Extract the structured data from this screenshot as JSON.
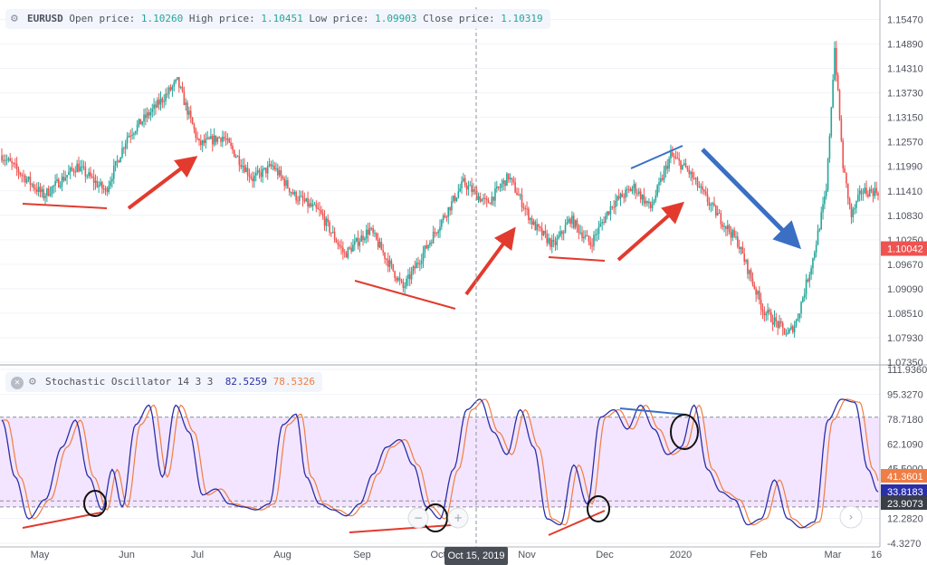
{
  "main_legend": {
    "symbol": "EURUSD",
    "open_label": "Open price:",
    "open": "1.10260",
    "high_label": "High price:",
    "high": "1.10451",
    "low_label": "Low price:",
    "low": "1.09903",
    "close_label": "Close price:",
    "close": "1.10319"
  },
  "osc_legend": {
    "name": "Stochastic Oscillator 14 3 3",
    "k": "82.5259",
    "d": "78.5326"
  },
  "crosshair_label": "Oct 15, 2019",
  "colors": {
    "up": "#26a69a",
    "down": "#ef5350",
    "k_line": "#2a2fa8",
    "d_line": "#f07d44",
    "band": "#f3e5ff",
    "arrow_red": "#e23b2e",
    "arrow_blue": "#3a6fc4",
    "divergence_red": "#e23b2e",
    "divergence_blue": "#3a6fc4"
  },
  "chart_data": [
    {
      "type": "candlestick",
      "symbol": "EURUSD",
      "y_ticks": [
        "1.15470",
        "1.14890",
        "1.14310",
        "1.13730",
        "1.13150",
        "1.12570",
        "1.11990",
        "1.11410",
        "1.10830",
        "1.10250",
        "1.09670",
        "1.09090",
        "1.08510",
        "1.07930",
        "1.07350"
      ],
      "ylim": [
        1.0735,
        1.1576
      ],
      "last_price": "1.10042",
      "x_ticks": [
        "May",
        "Jun",
        "Jul",
        "Aug",
        "Sep",
        "Oct",
        "Nov",
        "Dec",
        "2020",
        "Feb",
        "Mar",
        "16"
      ],
      "segments": [
        {
          "from": 0,
          "to": 1.1225
        },
        {
          "from": 25,
          "to": 1.113
        },
        {
          "from": 45,
          "to": 1.12
        },
        {
          "from": 62,
          "to": 1.114
        },
        {
          "from": 75,
          "to": 1.127
        },
        {
          "from": 92,
          "to": 1.134
        },
        {
          "from": 105,
          "to": 1.14
        },
        {
          "from": 118,
          "to": 1.125
        },
        {
          "from": 132,
          "to": 1.127
        },
        {
          "from": 150,
          "to": 1.117
        },
        {
          "from": 162,
          "to": 1.12
        },
        {
          "from": 175,
          "to": 1.113
        },
        {
          "from": 190,
          "to": 1.109
        },
        {
          "from": 205,
          "to": 1.099
        },
        {
          "from": 220,
          "to": 1.105
        },
        {
          "from": 240,
          "to": 1.091
        },
        {
          "from": 260,
          "to": 1.105
        },
        {
          "from": 276,
          "to": 1.116
        },
        {
          "from": 290,
          "to": 1.111
        },
        {
          "from": 303,
          "to": 1.1175
        },
        {
          "from": 318,
          "to": 1.106
        },
        {
          "from": 330,
          "to": 1.101
        },
        {
          "from": 340,
          "to": 1.1075
        },
        {
          "from": 352,
          "to": 1.1015
        },
        {
          "from": 365,
          "to": 1.111
        },
        {
          "from": 378,
          "to": 1.115
        },
        {
          "from": 388,
          "to": 1.11
        },
        {
          "from": 400,
          "to": 1.1225
        },
        {
          "from": 410,
          "to": 1.119
        },
        {
          "from": 425,
          "to": 1.11
        },
        {
          "from": 440,
          "to": 1.102
        },
        {
          "from": 455,
          "to": 1.086
        },
        {
          "from": 470,
          "to": 1.08
        },
        {
          "from": 475,
          "to": 1.083
        },
        {
          "from": 485,
          "to": 1.098
        },
        {
          "from": 493,
          "to": 1.114
        },
        {
          "from": 498,
          "to": 1.148
        },
        {
          "from": 503,
          "to": 1.12
        },
        {
          "from": 508,
          "to": 1.108
        },
        {
          "from": 514,
          "to": 1.114
        }
      ]
    },
    {
      "type": "line",
      "name": "Stochastic Oscillator 14 3 3",
      "y_ticks": [
        "111.9360",
        "95.3270",
        "78.7180",
        "62.1090",
        "45.5000",
        "28.8910",
        "12.2820",
        "-4.3270"
      ],
      "ylim": [
        -4.327,
        111.936
      ],
      "band": [
        20,
        80
      ],
      "last_values": [
        "41.3601",
        "33.8183",
        "23.9073"
      ],
      "k_anchors": [
        {
          "x": 0,
          "y": 78
        },
        {
          "x": 8,
          "y": 40
        },
        {
          "x": 16,
          "y": 12
        },
        {
          "x": 26,
          "y": 25
        },
        {
          "x": 36,
          "y": 60
        },
        {
          "x": 44,
          "y": 78
        },
        {
          "x": 52,
          "y": 40
        },
        {
          "x": 60,
          "y": 18
        },
        {
          "x": 66,
          "y": 45
        },
        {
          "x": 72,
          "y": 20
        },
        {
          "x": 80,
          "y": 75
        },
        {
          "x": 88,
          "y": 88
        },
        {
          "x": 96,
          "y": 40
        },
        {
          "x": 104,
          "y": 88
        },
        {
          "x": 112,
          "y": 70
        },
        {
          "x": 120,
          "y": 28
        },
        {
          "x": 128,
          "y": 32
        },
        {
          "x": 136,
          "y": 22
        },
        {
          "x": 144,
          "y": 20
        },
        {
          "x": 152,
          "y": 18
        },
        {
          "x": 160,
          "y": 22
        },
        {
          "x": 168,
          "y": 75
        },
        {
          "x": 176,
          "y": 82
        },
        {
          "x": 182,
          "y": 40
        },
        {
          "x": 190,
          "y": 22
        },
        {
          "x": 198,
          "y": 18
        },
        {
          "x": 206,
          "y": 14
        },
        {
          "x": 214,
          "y": 22
        },
        {
          "x": 222,
          "y": 42
        },
        {
          "x": 230,
          "y": 60
        },
        {
          "x": 238,
          "y": 65
        },
        {
          "x": 246,
          "y": 48
        },
        {
          "x": 254,
          "y": 20
        },
        {
          "x": 262,
          "y": 12
        },
        {
          "x": 270,
          "y": 45
        },
        {
          "x": 278,
          "y": 85
        },
        {
          "x": 286,
          "y": 92
        },
        {
          "x": 294,
          "y": 70
        },
        {
          "x": 302,
          "y": 55
        },
        {
          "x": 310,
          "y": 85
        },
        {
          "x": 318,
          "y": 60
        },
        {
          "x": 326,
          "y": 12
        },
        {
          "x": 334,
          "y": 8
        },
        {
          "x": 342,
          "y": 48
        },
        {
          "x": 350,
          "y": 22
        },
        {
          "x": 358,
          "y": 80
        },
        {
          "x": 366,
          "y": 85
        },
        {
          "x": 374,
          "y": 72
        },
        {
          "x": 382,
          "y": 88
        },
        {
          "x": 390,
          "y": 72
        },
        {
          "x": 398,
          "y": 55
        },
        {
          "x": 406,
          "y": 60
        },
        {
          "x": 414,
          "y": 88
        },
        {
          "x": 422,
          "y": 45
        },
        {
          "x": 430,
          "y": 30
        },
        {
          "x": 438,
          "y": 25
        },
        {
          "x": 446,
          "y": 8
        },
        {
          "x": 454,
          "y": 12
        },
        {
          "x": 462,
          "y": 38
        },
        {
          "x": 470,
          "y": 12
        },
        {
          "x": 478,
          "y": 6
        },
        {
          "x": 486,
          "y": 10
        },
        {
          "x": 494,
          "y": 78
        },
        {
          "x": 502,
          "y": 92
        },
        {
          "x": 510,
          "y": 90
        },
        {
          "x": 518,
          "y": 45
        },
        {
          "x": 524,
          "y": 30
        }
      ]
    }
  ]
}
